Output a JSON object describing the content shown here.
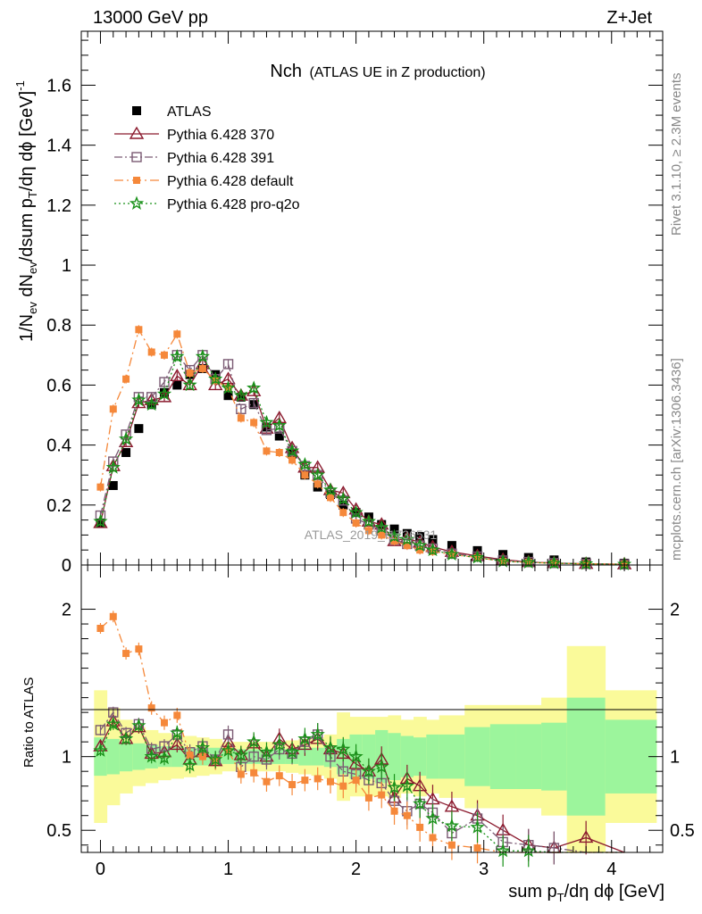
{
  "header": {
    "left": "13000 GeV pp",
    "right": "Z+Jet"
  },
  "plot_title": {
    "main": "Nch",
    "sub": "(ATLAS UE in Z production)"
  },
  "side_text": {
    "rivet": "Rivet 3.1.10, ≥ 2.3M events",
    "mcplots": "mcplots.cern.ch [arXiv:1306.3436]"
  },
  "watermark": "ATLAS_2019_I1736531",
  "colors": {
    "atlas": "#000000",
    "p370": "#8b1a2e",
    "p391": "#7a5a73",
    "pdefault": "#f5883a",
    "pq2o": "#199119",
    "band_inner": "#9cf59c",
    "band_outer": "#fafa9a"
  },
  "chart_data": [
    {
      "type": "scatter",
      "panel": "main",
      "xlabel": "sum p_T/dη dϕ [GeV]",
      "ylabel": "1/N_ev dN_ev/dsum p_T/dη dϕ [GeV]^-1",
      "xlim": [
        -0.15,
        4.4
      ],
      "ylim": [
        0,
        1.78
      ],
      "yticks": [
        "0",
        "0.2",
        "0.4",
        "0.6",
        "0.8",
        "1",
        "1.2",
        "1.4",
        "1.6"
      ],
      "xticks": [
        "0",
        "1",
        "2",
        "3",
        "4"
      ],
      "legend_position": "top-left",
      "x": [
        0.0,
        0.1,
        0.2,
        0.3,
        0.4,
        0.5,
        0.6,
        0.7,
        0.8,
        0.9,
        1.0,
        1.1,
        1.2,
        1.3,
        1.4,
        1.5,
        1.6,
        1.7,
        1.8,
        1.9,
        2.0,
        2.1,
        2.2,
        2.3,
        2.4,
        2.5,
        2.6,
        2.75,
        2.95,
        3.15,
        3.35,
        3.55,
        3.8,
        4.1
      ],
      "series": [
        {
          "name": "ATLAS",
          "marker": "square",
          "values": [
            0.14,
            0.265,
            0.375,
            0.455,
            0.535,
            0.575,
            0.6,
            0.635,
            0.655,
            0.635,
            0.565,
            0.56,
            0.535,
            0.46,
            0.43,
            0.37,
            0.3,
            0.26,
            0.235,
            0.2,
            0.175,
            0.16,
            0.135,
            0.12,
            0.105,
            0.095,
            0.085,
            0.065,
            0.048,
            0.035,
            0.025,
            0.017,
            0.01,
            0.006
          ]
        },
        {
          "name": "Pythia 6.428 370",
          "marker": "triangle-open",
          "values": [
            0.14,
            0.33,
            0.41,
            0.54,
            0.55,
            0.56,
            0.63,
            0.6,
            0.67,
            0.6,
            0.62,
            0.565,
            0.58,
            0.455,
            0.49,
            0.39,
            0.325,
            0.325,
            0.25,
            0.24,
            0.185,
            0.145,
            0.135,
            0.08,
            0.09,
            0.075,
            0.06,
            0.044,
            0.03,
            0.018,
            0.01,
            0.0065,
            0.004,
            0.0025
          ]
        },
        {
          "name": "Pythia 6.428 391",
          "marker": "square-open",
          "values": [
            0.165,
            0.345,
            0.435,
            0.56,
            0.56,
            0.61,
            0.7,
            0.65,
            0.7,
            0.62,
            0.67,
            0.52,
            0.54,
            0.45,
            0.455,
            0.38,
            0.33,
            0.3,
            0.24,
            0.215,
            0.155,
            0.135,
            0.115,
            0.085,
            0.07,
            0.065,
            0.055,
            0.038,
            0.028,
            0.015,
            0.01,
            0.0065,
            0.004,
            0.0025
          ]
        },
        {
          "name": "Pythia 6.428 default",
          "marker": "square-filled",
          "values": [
            0.26,
            0.52,
            0.62,
            0.785,
            0.71,
            0.7,
            0.77,
            0.64,
            0.655,
            0.615,
            0.59,
            0.49,
            0.475,
            0.38,
            0.375,
            0.35,
            0.3,
            0.27,
            0.225,
            0.175,
            0.14,
            0.115,
            0.1,
            0.08,
            0.065,
            0.05,
            0.045,
            0.035,
            0.025,
            0.012,
            0.009,
            0.006,
            0.004,
            0.0025
          ]
        },
        {
          "name": "Pythia 6.428 pro-q2o",
          "marker": "star",
          "values": [
            0.145,
            0.325,
            0.42,
            0.55,
            0.535,
            0.57,
            0.695,
            0.6,
            0.695,
            0.62,
            0.59,
            0.565,
            0.59,
            0.475,
            0.465,
            0.38,
            0.335,
            0.3,
            0.25,
            0.22,
            0.175,
            0.145,
            0.125,
            0.095,
            0.085,
            0.065,
            0.05,
            0.035,
            0.025,
            0.012,
            0.0085,
            0.006,
            0.004,
            0.0025
          ]
        }
      ]
    },
    {
      "type": "scatter",
      "panel": "ratio",
      "ylabel": "Ratio to ATLAS",
      "xlabel": "sum p_T/dη dϕ [GeV]",
      "xlim": [
        -0.15,
        4.4
      ],
      "ylim": [
        0.35,
        2.3
      ],
      "yticks": [
        "0.5",
        "1",
        "2"
      ],
      "xticks": [
        "0",
        "1",
        "2",
        "3",
        "4"
      ],
      "band_edges": [
        -0.05,
        0.05,
        0.15,
        0.25,
        0.35,
        0.45,
        0.55,
        0.65,
        0.75,
        0.85,
        0.95,
        1.05,
        1.15,
        1.25,
        1.35,
        1.45,
        1.55,
        1.65,
        1.75,
        1.85,
        1.95,
        2.05,
        2.15,
        2.25,
        2.35,
        2.45,
        2.55,
        2.65,
        2.85,
        3.05,
        3.25,
        3.45,
        3.65,
        3.95,
        4.35
      ],
      "band_inner": [
        0.13,
        0.12,
        0.1,
        0.09,
        0.08,
        0.07,
        0.07,
        0.06,
        0.06,
        0.06,
        0.05,
        0.05,
        0.05,
        0.05,
        0.05,
        0.05,
        0.06,
        0.06,
        0.07,
        0.12,
        0.15,
        0.15,
        0.18,
        0.16,
        0.14,
        0.13,
        0.15,
        0.15,
        0.2,
        0.22,
        0.22,
        0.23,
        0.4,
        0.25,
        0.18
      ],
      "band_outer": [
        0.45,
        0.33,
        0.25,
        0.2,
        0.18,
        0.16,
        0.15,
        0.14,
        0.13,
        0.12,
        0.1,
        0.1,
        0.1,
        0.1,
        0.1,
        0.11,
        0.12,
        0.13,
        0.15,
        0.3,
        0.27,
        0.27,
        0.27,
        0.28,
        0.25,
        0.27,
        0.25,
        0.28,
        0.35,
        0.35,
        0.35,
        0.4,
        0.75,
        0.45,
        0.48
      ],
      "series": [
        {
          "name": "Pythia 6.428 370",
          "values": [
            1.07,
            1.24,
            1.12,
            1.2,
            1.02,
            1.03,
            1.08,
            0.98,
            1.03,
            0.97,
            1.1,
            1.01,
            1.09,
            1.0,
            1.12,
            1.05,
            1.08,
            1.12,
            1.05,
            1.02,
            0.95,
            0.9,
            0.98,
            0.72,
            0.85,
            0.8,
            0.71,
            0.66,
            0.6,
            0.5,
            0.4,
            0.38,
            0.45,
            0.35
          ]
        },
        {
          "name": "Pythia 6.428 391",
          "values": [
            1.18,
            1.3,
            1.16,
            1.22,
            1.05,
            1.07,
            1.15,
            1.03,
            1.07,
            0.98,
            1.15,
            0.93,
            1.0,
            0.98,
            1.05,
            1.02,
            1.1,
            1.15,
            1.0,
            0.9,
            0.88,
            0.84,
            0.82,
            0.7,
            0.63,
            0.68,
            0.62,
            0.48,
            0.58,
            0.42,
            0.4,
            0.38,
            0.35,
            0.35
          ]
        },
        {
          "name": "Pythia 6.428 default",
          "values": [
            1.87,
            1.95,
            1.7,
            1.73,
            1.33,
            1.23,
            1.28,
            1.01,
            1.0,
            0.97,
            1.04,
            0.88,
            0.89,
            0.83,
            0.87,
            0.81,
            0.84,
            0.85,
            0.83,
            0.8,
            0.84,
            0.72,
            0.74,
            0.63,
            0.6,
            0.52,
            0.45,
            0.4,
            0.38,
            0.35,
            0.35,
            0.35,
            0.35,
            0.35
          ]
        },
        {
          "name": "Pythia 6.428 pro-q2o",
          "values": [
            1.04,
            1.22,
            1.12,
            1.21,
            1.0,
            0.99,
            1.16,
            0.94,
            1.06,
            0.98,
            1.04,
            1.01,
            1.1,
            1.03,
            1.08,
            1.03,
            1.12,
            1.15,
            1.06,
            1.05,
            1.0,
            0.9,
            0.93,
            0.79,
            0.8,
            0.68,
            0.58,
            0.53,
            0.52,
            0.36,
            0.36,
            0.35,
            0.35,
            0.35
          ]
        }
      ]
    }
  ]
}
